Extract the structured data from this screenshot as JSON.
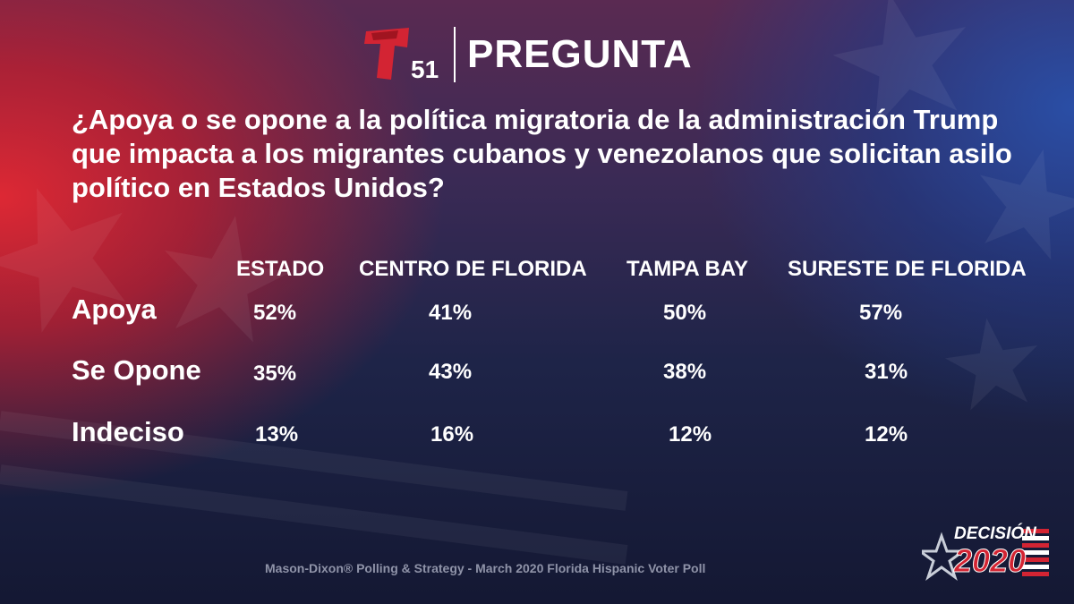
{
  "header": {
    "logo_number": "51",
    "title": "PREGUNTA"
  },
  "question": "¿Apoya o se opone a la política migratoria de la administración Trump que impacta a los migrantes cubanos y venezolanos que solicitan asilo político en Estados Unidos?",
  "chart_data": {
    "type": "table",
    "columns": [
      "ESTADO",
      "CENTRO DE FLORIDA",
      "TAMPA BAY",
      "SURESTE DE FLORIDA"
    ],
    "rows": [
      {
        "label": "Apoya",
        "values": [
          "52%",
          "41%",
          "50%",
          "57%"
        ]
      },
      {
        "label": "Se Opone",
        "values": [
          "35%",
          "43%",
          "38%",
          "31%"
        ]
      },
      {
        "label": "Indeciso",
        "values": [
          "13%",
          "16%",
          "12%",
          "12%"
        ]
      }
    ]
  },
  "footer": {
    "source": "Mason-Dixon® Polling & Strategy - March 2020 Florida Hispanic Voter Poll"
  },
  "badge": {
    "line1": "DECISIÓN",
    "line2": "2020"
  },
  "colors": {
    "brand_red": "#d32433",
    "brand_blue": "#1f3f8f",
    "text": "#ffffff",
    "footer_text": "#8f93a8"
  }
}
